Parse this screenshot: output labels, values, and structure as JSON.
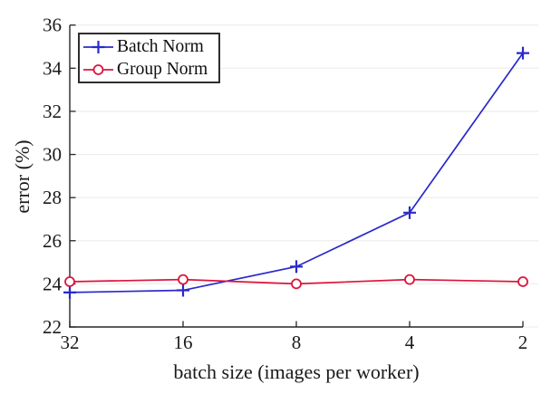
{
  "chart_data": {
    "type": "line",
    "title": "",
    "xlabel": "batch size (images per worker)",
    "ylabel": "error (%)",
    "categories": [
      "32",
      "16",
      "8",
      "4",
      "2"
    ],
    "y_ticks": [
      22,
      24,
      26,
      28,
      30,
      32,
      34,
      36
    ],
    "ylim": [
      22,
      36
    ],
    "grid": "horizontal-only",
    "legend_position": "top-left",
    "axis_color": "#262626",
    "grid_color": "#ebebeb",
    "tick_label_color": "#1a1a1a",
    "series": [
      {
        "name": "Batch Norm",
        "color": "#2929cc",
        "marker": "plus",
        "values": [
          23.6,
          23.7,
          24.8,
          27.3,
          34.7
        ]
      },
      {
        "name": "Group Norm",
        "color": "#dc143c",
        "marker": "circle",
        "values": [
          24.1,
          24.2,
          24.0,
          24.2,
          24.1
        ]
      }
    ]
  }
}
